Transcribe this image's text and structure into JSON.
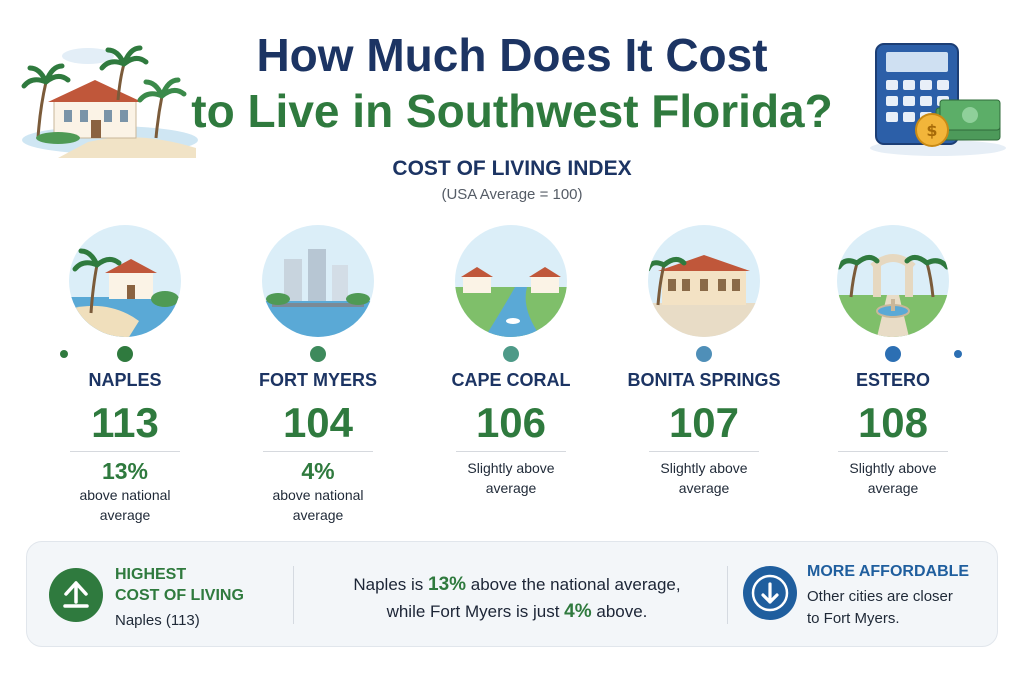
{
  "title": {
    "line1": "How Much Does It Cost",
    "line2": "to Live in Southwest Florida?"
  },
  "index": {
    "title": "COST OF LIVING INDEX",
    "subtitle": "(USA Average = 100)"
  },
  "chart_data": {
    "type": "table",
    "title": "COST OF LIVING INDEX",
    "subtitle": "(USA Average = 100)",
    "baseline": 100,
    "cities": [
      {
        "name": "NAPLES",
        "value": 113,
        "pct": "13%",
        "note": "above national average",
        "marker_color": "#2f7a3e"
      },
      {
        "name": "FORT MYERS",
        "value": 104,
        "pct": "4%",
        "note": "above national average",
        "marker_color": "#3e8a5c"
      },
      {
        "name": "CAPE CORAL",
        "value": 106,
        "pct": "",
        "note": "Slightly above average",
        "marker_color": "#4e9a88"
      },
      {
        "name": "BONITA SPRINGS",
        "value": 107,
        "pct": "",
        "note": "Slightly above average",
        "marker_color": "#4f8fb8"
      },
      {
        "name": "ESTERO",
        "value": 108,
        "pct": "",
        "note": "Slightly above average",
        "marker_color": "#2c6fb3"
      }
    ]
  },
  "colors": {
    "navy": "#1c3463",
    "green": "#2f7a3e",
    "blue": "#1f5e9e",
    "timeline_start": "#2f7a3e",
    "timeline_end": "#2c6fb3"
  },
  "summary": {
    "highest": {
      "icon": "arrow-up-icon",
      "title_line1": "HIGHEST",
      "title_line2": "COST OF LIVING",
      "detail": "Naples (113)"
    },
    "middle": {
      "part1": "Naples is ",
      "pct1": "13%",
      "part2": " above the national average,",
      "part3": "while Fort Myers is just ",
      "pct2": "4%",
      "part4": " above."
    },
    "affordable": {
      "icon": "arrow-down-icon",
      "title": "MORE AFFORDABLE",
      "line1": "Other cities are closer",
      "line2": "to Fort Myers."
    }
  }
}
